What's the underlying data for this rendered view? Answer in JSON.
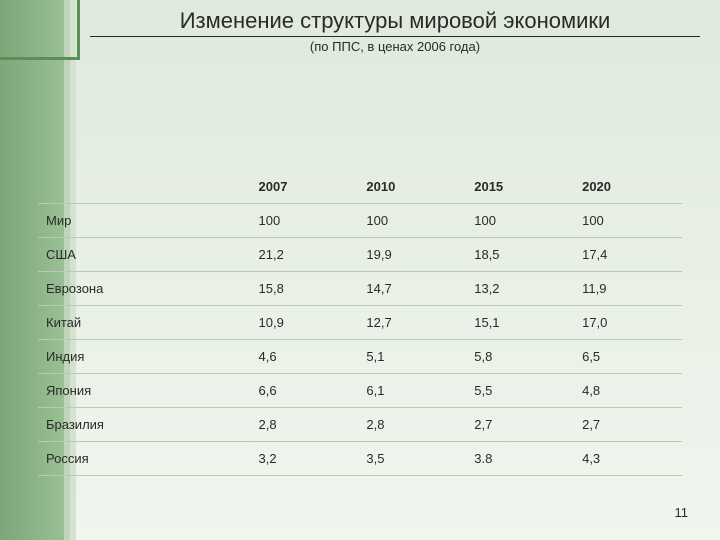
{
  "title": "Изменение структуры мировой экономики",
  "subtitle": "(по ППС, в ценах 2006 года)",
  "page_number": "11",
  "colors": {
    "bg_top": "#dfe9dc",
    "bg_bottom": "#f0f5ee",
    "sidebar_dark": "#7da679",
    "sidebar_light": "#9abf96",
    "accent1": "#c0d4bc",
    "accent2": "#d4e2d0",
    "corner_border": "#5a8f57",
    "text": "#2a2a2a",
    "row_border": "#b8c9b4"
  },
  "typography": {
    "title_fontsize": 22,
    "subtitle_fontsize": 13,
    "table_fontsize": 13,
    "font_family": "Arial"
  },
  "table": {
    "type": "table",
    "columns": [
      "",
      "2007",
      "2010",
      "2015",
      "2020"
    ],
    "column_widths_pct": [
      33,
      16.75,
      16.75,
      16.75,
      16.75
    ],
    "rows": [
      [
        "Мир",
        "100",
        "100",
        "100",
        "100"
      ],
      [
        "США",
        "21,2",
        "19,9",
        "18,5",
        "17,4"
      ],
      [
        "Еврозона",
        "15,8",
        "14,7",
        "13,2",
        "11,9"
      ],
      [
        "Китай",
        "10,9",
        "12,7",
        "15,1",
        "17,0"
      ],
      [
        "Индия",
        "4,6",
        "5,1",
        "5,8",
        "6,5"
      ],
      [
        "Япония",
        "6,6",
        "6,1",
        "5,5",
        "4,8"
      ],
      [
        "Бразилия",
        "2,8",
        "2,8",
        "2,7",
        "2,7"
      ],
      [
        "Россия",
        "3,2",
        "3,5",
        "3.8",
        "4,3"
      ]
    ]
  }
}
